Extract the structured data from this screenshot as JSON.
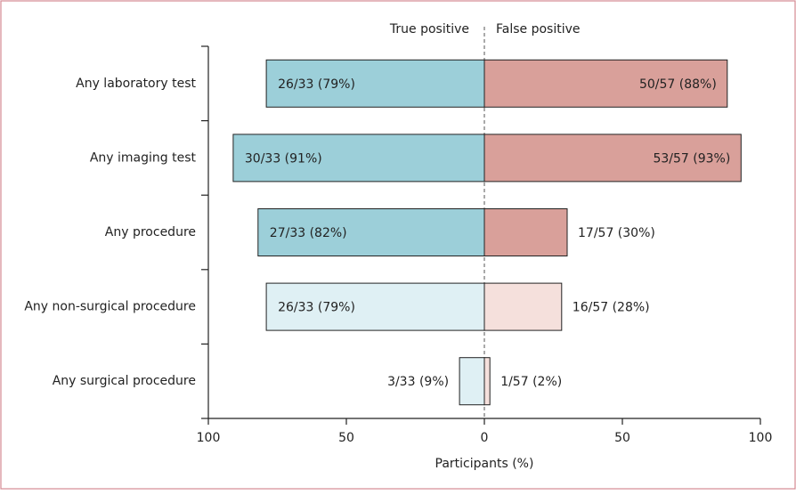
{
  "chart_data": {
    "type": "diverging-bar",
    "categories": [
      "Any laboratory test",
      "Any imaging test",
      "Any procedure",
      "Any non-surgical procedure",
      "Any surgical procedure"
    ],
    "series": [
      {
        "name": "True positive",
        "side": "left",
        "colors": [
          "#9ccfd9",
          "#9ccfd9",
          "#9ccfd9",
          "#dff0f4",
          "#dff0f4"
        ],
        "values": [
          79,
          91,
          82,
          79,
          9
        ],
        "value_labels": [
          "26/33 (79%)",
          "30/33 (91%)",
          "27/33 (82%)",
          "26/33 (79%)",
          "3/33 (9%)"
        ]
      },
      {
        "name": "False positive",
        "side": "right",
        "colors": [
          "#d9a09a",
          "#d9a09a",
          "#d9a09a",
          "#f5e0dc",
          "#f5e0dc"
        ],
        "values": [
          88,
          93,
          30,
          28,
          2
        ],
        "value_labels": [
          "50/57 (88%)",
          "53/57 (93%)",
          "17/57 (30%)",
          "16/57 (28%)",
          "1/57 (2%)"
        ]
      }
    ],
    "xlabel": "Participants (%)",
    "xlim": [
      -100,
      100
    ],
    "xticks": [
      {
        "value": -100,
        "label": "100"
      },
      {
        "value": -50,
        "label": "50"
      },
      0,
      50,
      100
    ]
  }
}
